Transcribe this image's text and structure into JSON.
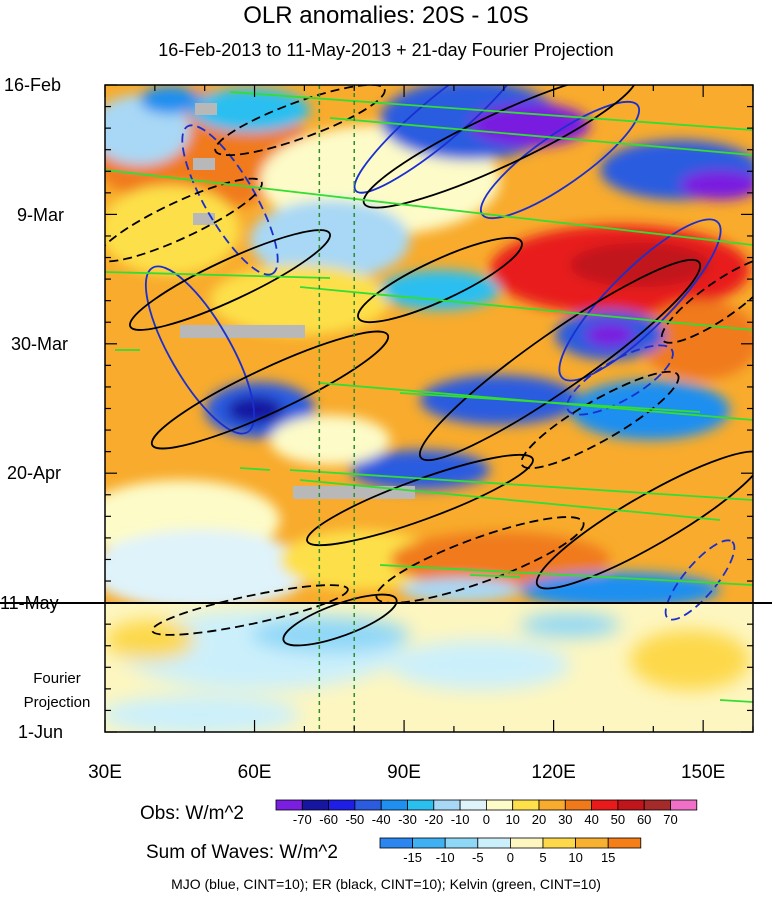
{
  "chart_data": {
    "type": "heatmap",
    "title": "OLR anomalies: 20S - 10S",
    "subtitle": "16-Feb-2013 to 11-May-2013 + 21-day Fourier Projection",
    "x_ticks": [
      "30E",
      "60E",
      "90E",
      "120E",
      "150E"
    ],
    "x_tick_values": [
      30,
      60,
      90,
      120,
      150
    ],
    "xlim": [
      30,
      160
    ],
    "y_ticks": [
      "16-Feb",
      "9-Mar",
      "30-Mar",
      "20-Apr",
      "11-May",
      "1-Jun"
    ],
    "projection_label": [
      "Fourier",
      "Projection"
    ],
    "projection_start": "11-May",
    "reference_lines_lon": [
      73,
      80
    ],
    "obs_colorbar": {
      "title": "Obs: W/m^2",
      "levels": [
        "-70",
        "-60",
        "-50",
        "-40",
        "-30",
        "-20",
        "-10",
        "0",
        "10",
        "20",
        "30",
        "40",
        "50",
        "60",
        "70"
      ],
      "colors": [
        "#7a1fe0",
        "#1616a0",
        "#1e1ee6",
        "#2b5ce0",
        "#1f8ff0",
        "#2bbff0",
        "#a8d8f5",
        "#dff3fb",
        "#fdfbc8",
        "#fde04a",
        "#f8ab2c",
        "#f07a1a",
        "#e81a1a",
        "#c0151a",
        "#a52a2a",
        "#f070c8"
      ]
    },
    "waves_colorbar": {
      "title": "Sum of Waves: W/m^2",
      "levels": [
        "-15",
        "-10",
        "-5",
        "0",
        "5",
        "10",
        "15"
      ],
      "colors": [
        "#2b86f0",
        "#3fb0f2",
        "#8fd7f7",
        "#ccf0fb",
        "#fdf6c0",
        "#fdd84a",
        "#f8b030",
        "#f57e18"
      ]
    },
    "contours": "MJO (blue, CINT=10); ER (black, CINT=10); Kelvin (green, CINT=10)",
    "series_colors": {
      "MJO": "#1a2fd0",
      "ER": "#000000",
      "Kelvin": "#33dd33"
    }
  }
}
